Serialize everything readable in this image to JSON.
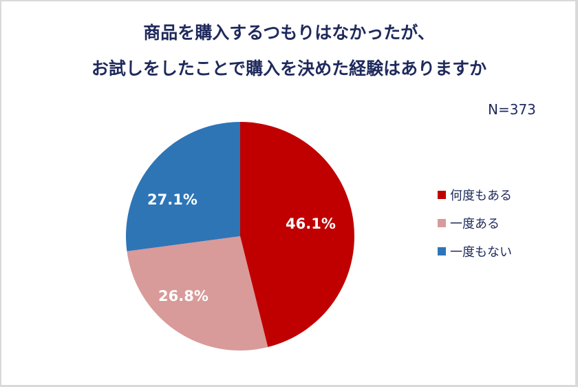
{
  "title": {
    "line1": "商品を購入するつもりはなかったが、",
    "line2": "お試しをしたことで購入を決めた経験はありますか"
  },
  "sample_size": "N=373",
  "legend": [
    {
      "label": "何度もある",
      "color": "#c00000"
    },
    {
      "label": "一度ある",
      "color": "#d99a9a"
    },
    {
      "label": "一度もない",
      "color": "#2e75b6"
    }
  ],
  "labels": {
    "s0": "46.1%",
    "s1": "26.8%",
    "s2": "27.1%"
  },
  "chart_data": {
    "type": "pie",
    "title": "商品を購入するつもりはなかったが、お試しをしたことで購入を決めた経験はありますか",
    "subtitle": "N=373",
    "categories": [
      "何度もある",
      "一度ある",
      "一度もない"
    ],
    "values": [
      46.1,
      26.8,
      27.1
    ],
    "unit": "%",
    "colors": [
      "#c00000",
      "#d99a9a",
      "#2e75b6"
    ],
    "start_angle": "12 o'clock, clockwise",
    "legend_position": "right"
  }
}
